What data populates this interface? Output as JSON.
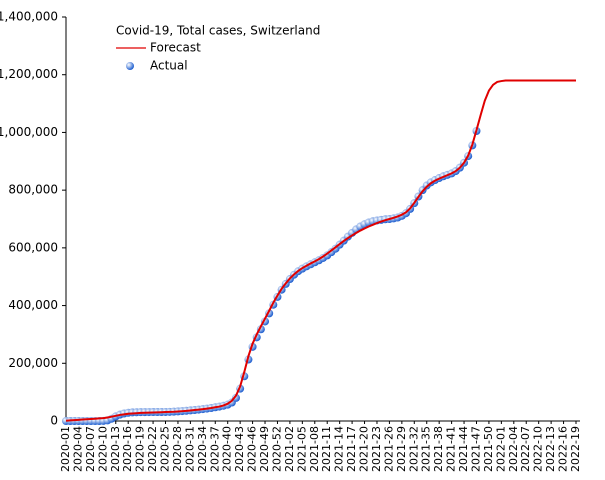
{
  "chart_data": {
    "type": "line",
    "title": "Covid-19, Total cases, Switzerland",
    "categories": [
      "2020-01",
      null,
      null,
      "2020-04",
      null,
      null,
      "2020-07",
      null,
      null,
      "2020-10",
      null,
      null,
      "2020-13",
      null,
      null,
      "2020-16",
      null,
      null,
      "2020-19",
      null,
      null,
      "2020-22",
      null,
      null,
      "2020-25",
      null,
      null,
      "2020-28",
      null,
      null,
      "2020-31",
      null,
      null,
      "2020-34",
      null,
      null,
      "2020-37",
      null,
      null,
      "2020-40",
      null,
      null,
      "2020-43",
      null,
      null,
      "2020-46",
      null,
      null,
      "2020-49",
      null,
      null,
      "2020-52",
      null,
      null,
      "2021-02",
      null,
      null,
      "2021-05",
      null,
      null,
      "2021-08",
      null,
      null,
      "2021-11",
      null,
      null,
      "2021-14",
      null,
      null,
      "2021-17",
      null,
      null,
      "2021-20",
      null,
      null,
      "2021-23",
      null,
      null,
      "2021-26",
      null,
      null,
      "2021-29",
      null,
      null,
      "2021-32",
      null,
      null,
      "2021-35",
      null,
      null,
      "2021-38",
      null,
      null,
      "2021-41",
      null,
      null,
      "2021-44",
      null,
      null,
      "2021-47",
      null,
      null,
      "2021-50",
      null,
      null,
      "2022-01",
      null,
      null,
      "2022-04",
      null,
      null,
      "2022-07",
      null,
      null,
      "2022-10",
      null,
      null,
      "2022-13",
      null,
      null,
      "2022-16",
      null,
      null,
      "2022-19"
    ],
    "series": [
      {
        "name": "Forecast",
        "style": "line",
        "color": "#e00000",
        "values": [
          1000,
          2000,
          3000,
          4000,
          5000,
          6000,
          7000,
          8000,
          9000,
          10000,
          12000,
          15000,
          18000,
          21000,
          23000,
          25000,
          26000,
          27000,
          28000,
          28500,
          29000,
          29500,
          30000,
          30500,
          31000,
          31500,
          32000,
          33000,
          34000,
          35000,
          36500,
          38000,
          39500,
          41000,
          43000,
          45000,
          47500,
          50000,
          54000,
          60000,
          70000,
          88000,
          120000,
          170000,
          225000,
          268000,
          300000,
          328000,
          355000,
          382000,
          410000,
          435000,
          458000,
          477000,
          494000,
          508000,
          520000,
          530000,
          538000,
          546000,
          553000,
          561000,
          570000,
          580000,
          591000,
          602000,
          613000,
          624000,
          634000,
          643000,
          652000,
          660000,
          667000,
          674000,
          680000,
          686000,
          691000,
          696000,
          700000,
          704000,
          709000,
          715000,
          723000,
          737000,
          756000,
          777000,
          796000,
          812000,
          824000,
          833000,
          840000,
          846000,
          852000,
          858000,
          866000,
          878000,
          895000,
          920000,
          958000,
          1008000,
          1060000,
          1110000,
          1145000,
          1165000,
          1175000,
          1178000,
          1180000,
          1180000,
          1180000,
          1180000,
          1180000,
          1180000,
          1180000,
          1180000,
          1180000,
          1180000,
          1180000,
          1180000,
          1180000,
          1180000,
          1180000,
          1180000,
          1180000,
          1180000
        ]
      },
      {
        "name": "Actual",
        "style": "markers",
        "color": "#1f5fd0",
        "values": [
          0,
          0,
          0,
          0,
          0,
          0,
          0,
          0,
          0,
          300,
          2000,
          8000,
          16000,
          22000,
          26000,
          28500,
          29700,
          30200,
          30600,
          30800,
          30900,
          31000,
          31100,
          31200,
          31400,
          31700,
          32500,
          33300,
          34300,
          35500,
          36700,
          38000,
          39600,
          41300,
          43000,
          45000,
          47500,
          50000,
          53000,
          56600,
          64000,
          80000,
          112000,
          155000,
          213000,
          257000,
          290000,
          318000,
          345000,
          373000,
          403000,
          430000,
          455000,
          475000,
          492000,
          507000,
          519000,
          528000,
          536000,
          543000,
          550000,
          557000,
          565000,
          574000,
          585000,
          597000,
          611000,
          625000,
          639000,
          652000,
          664000,
          674000,
          682000,
          688000,
          692000,
          695000,
          697000,
          699000,
          700000,
          702000,
          705000,
          711000,
          720000,
          735000,
          755000,
          778000,
          800000,
          816000,
          827000,
          835000,
          842000,
          848000,
          853000,
          858000,
          866000,
          878000,
          895000,
          918000,
          955000,
          1005000,
          null,
          null,
          null,
          null,
          null,
          null,
          null,
          null,
          null,
          null,
          null,
          null,
          null,
          null,
          null,
          null,
          null,
          null,
          null,
          null,
          null,
          null,
          null,
          null
        ]
      }
    ],
    "ylim": [
      0,
      1400000
    ],
    "yticks": [
      0,
      {
        "value": 200000,
        "label": "200,000"
      },
      {
        "value": 400000,
        "label": "400,000"
      },
      {
        "value": 600000,
        "label": "600,000"
      },
      {
        "value": 800000,
        "label": "800,000"
      },
      {
        "value": 1000000,
        "label": "1,000,000"
      },
      {
        "value": 1200000,
        "label": "1,200,000"
      },
      {
        "value": 1400000,
        "label": "1,400,000"
      }
    ],
    "grid": false
  }
}
